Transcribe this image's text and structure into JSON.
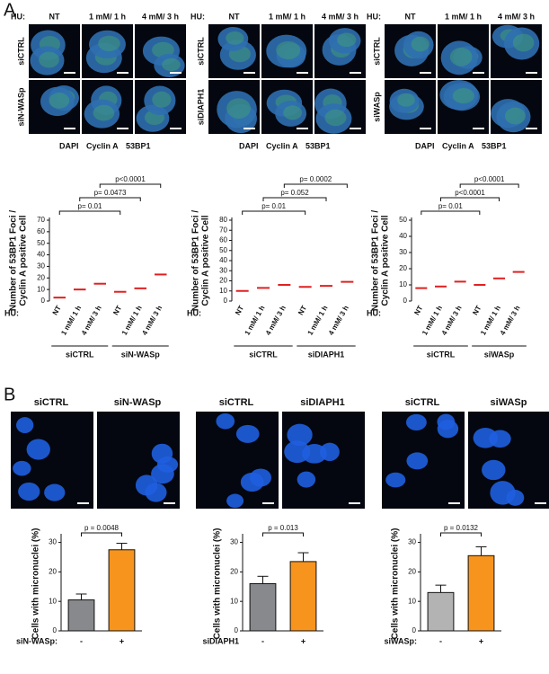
{
  "panel_labels": [
    "A",
    "B"
  ],
  "panel_a": {
    "legend_colors": [
      "#2b2ba6",
      "#2a9a2a",
      "#e02020"
    ],
    "images": [
      {
        "hu": "HU:",
        "conditions": [
          "NT",
          "1 mM/ 1 h",
          "4 mM/ 3 h"
        ],
        "rows": [
          "siCTRL",
          "siN-WASp"
        ],
        "legend": [
          "DAPI",
          "Cyclin A",
          "53BP1"
        ]
      },
      {
        "hu": "HU:",
        "conditions": [
          "NT",
          "1 mM/ 1 h",
          "4 mM/ 3 h"
        ],
        "rows": [
          "siCTRL",
          "siDIAPH1"
        ],
        "legend": [
          "DAPI",
          "Cyclin A",
          "53BP1"
        ]
      },
      {
        "hu": "HU:",
        "conditions": [
          "NT",
          "1 mM/ 1 h",
          "4 mM/ 3 h"
        ],
        "rows": [
          "siCTRL",
          "siWASp"
        ],
        "legend": [
          "DAPI",
          "Cyclin A",
          "53BP1"
        ]
      }
    ]
  },
  "panel_b": {
    "images": [
      {
        "columns": [
          "siCTRL",
          "siN-WASp"
        ]
      },
      {
        "columns": [
          "siCTRL",
          "siDIAPH1"
        ]
      },
      {
        "columns": [
          "siCTRL",
          "siWASp"
        ]
      }
    ]
  },
  "chart_data": [
    {
      "type": "dot",
      "ylabel": [
        "Number of 53BP1 Foci /",
        "Cyclin A positive Cell"
      ],
      "xlabel": "HU:",
      "categories": [
        "NT",
        "1 mM/ 1 h",
        "4 mM/ 3 h",
        "NT",
        "1 mM/ 1 h",
        "4 mM/ 3 h"
      ],
      "groups": [
        "siCTRL",
        "siN-WASp"
      ],
      "values": [
        3,
        10,
        15,
        8,
        11,
        23
      ],
      "color": "#e02020",
      "ylim": [
        0,
        70
      ],
      "yticks": [
        0,
        10,
        20,
        30,
        40,
        50,
        60,
        70
      ],
      "comparisons": [
        {
          "from": 0,
          "to": 3,
          "label": "p= 0.01"
        },
        {
          "from": 1,
          "to": 4,
          "label": "p= 0.0473"
        },
        {
          "from": 2,
          "to": 5,
          "label": "p<0.0001"
        }
      ]
    },
    {
      "type": "dot",
      "ylabel": [
        "Number of 53BP1 Foci /",
        "Cyclin A positive Cell"
      ],
      "xlabel": "HU:",
      "categories": [
        "NT",
        "1 mM/ 1 h",
        "4 mM/ 3 h",
        "NT",
        "1 mM/ 1 h",
        "4 mM/ 3 h"
      ],
      "groups": [
        "siCTRL",
        "siDIAPH1"
      ],
      "values": [
        10,
        13,
        16,
        14,
        15,
        19
      ],
      "color": "#e02020",
      "ylim": [
        0,
        80
      ],
      "yticks": [
        0,
        10,
        20,
        30,
        40,
        50,
        60,
        70,
        80
      ],
      "comparisons": [
        {
          "from": 0,
          "to": 3,
          "label": "p= 0.01"
        },
        {
          "from": 1,
          "to": 4,
          "label": "p= 0.052"
        },
        {
          "from": 2,
          "to": 5,
          "label": "p= 0.0002"
        }
      ]
    },
    {
      "type": "dot",
      "ylabel": [
        "Number of 53BP1 Foci /",
        "Cyclin A positive Cell"
      ],
      "xlabel": "HU:",
      "categories": [
        "NT",
        "1 mM/ 1 h",
        "4 mM/ 3 h",
        "NT",
        "1 mM/ 1 h",
        "4 mM/ 3 h"
      ],
      "groups": [
        "siCTRL",
        "siWASp"
      ],
      "values": [
        8,
        9,
        12,
        10,
        14,
        18
      ],
      "color": "#e02020",
      "ylim": [
        0,
        50
      ],
      "yticks": [
        0,
        10,
        20,
        30,
        40,
        50
      ],
      "comparisons": [
        {
          "from": 0,
          "to": 3,
          "label": "p= 0.01"
        },
        {
          "from": 1,
          "to": 4,
          "label": "p<0.0001"
        },
        {
          "from": 2,
          "to": 5,
          "label": "p<0.0001"
        }
      ]
    },
    {
      "type": "bar",
      "ylabel": "Cells with micronuclei (%)",
      "xlabel": "siN-WASp:",
      "categories": [
        "-",
        "+"
      ],
      "values": [
        10.5,
        27.5
      ],
      "errors": [
        2,
        2.2
      ],
      "colors": [
        "#87898c",
        "#f7941d"
      ],
      "ylim": [
        0,
        32
      ],
      "yticks": [
        0,
        10,
        20,
        30
      ],
      "comparisons": [
        {
          "from": 0,
          "to": 1,
          "label": "p = 0.0048"
        }
      ]
    },
    {
      "type": "bar",
      "ylabel": "Cells with micronuclei (%)",
      "xlabel": "siDIAPH1",
      "categories": [
        "-",
        "+"
      ],
      "values": [
        16,
        23.5
      ],
      "errors": [
        2.5,
        3
      ],
      "colors": [
        "#87898c",
        "#f7941d"
      ],
      "ylim": [
        0,
        32
      ],
      "yticks": [
        0,
        10,
        20,
        30
      ],
      "comparisons": [
        {
          "from": 0,
          "to": 1,
          "label": "p = 0.013"
        }
      ]
    },
    {
      "type": "bar",
      "ylabel": "Cells with micronuclei (%)",
      "xlabel": "siWASp:",
      "categories": [
        "-",
        "+"
      ],
      "values": [
        13,
        25.5
      ],
      "errors": [
        2.5,
        3
      ],
      "colors": [
        "#b3b3b3",
        "#f7941d"
      ],
      "ylim": [
        0,
        32
      ],
      "yticks": [
        0,
        10,
        20,
        30
      ],
      "comparisons": [
        {
          "from": 0,
          "to": 1,
          "label": "p = 0.0132"
        }
      ]
    }
  ]
}
